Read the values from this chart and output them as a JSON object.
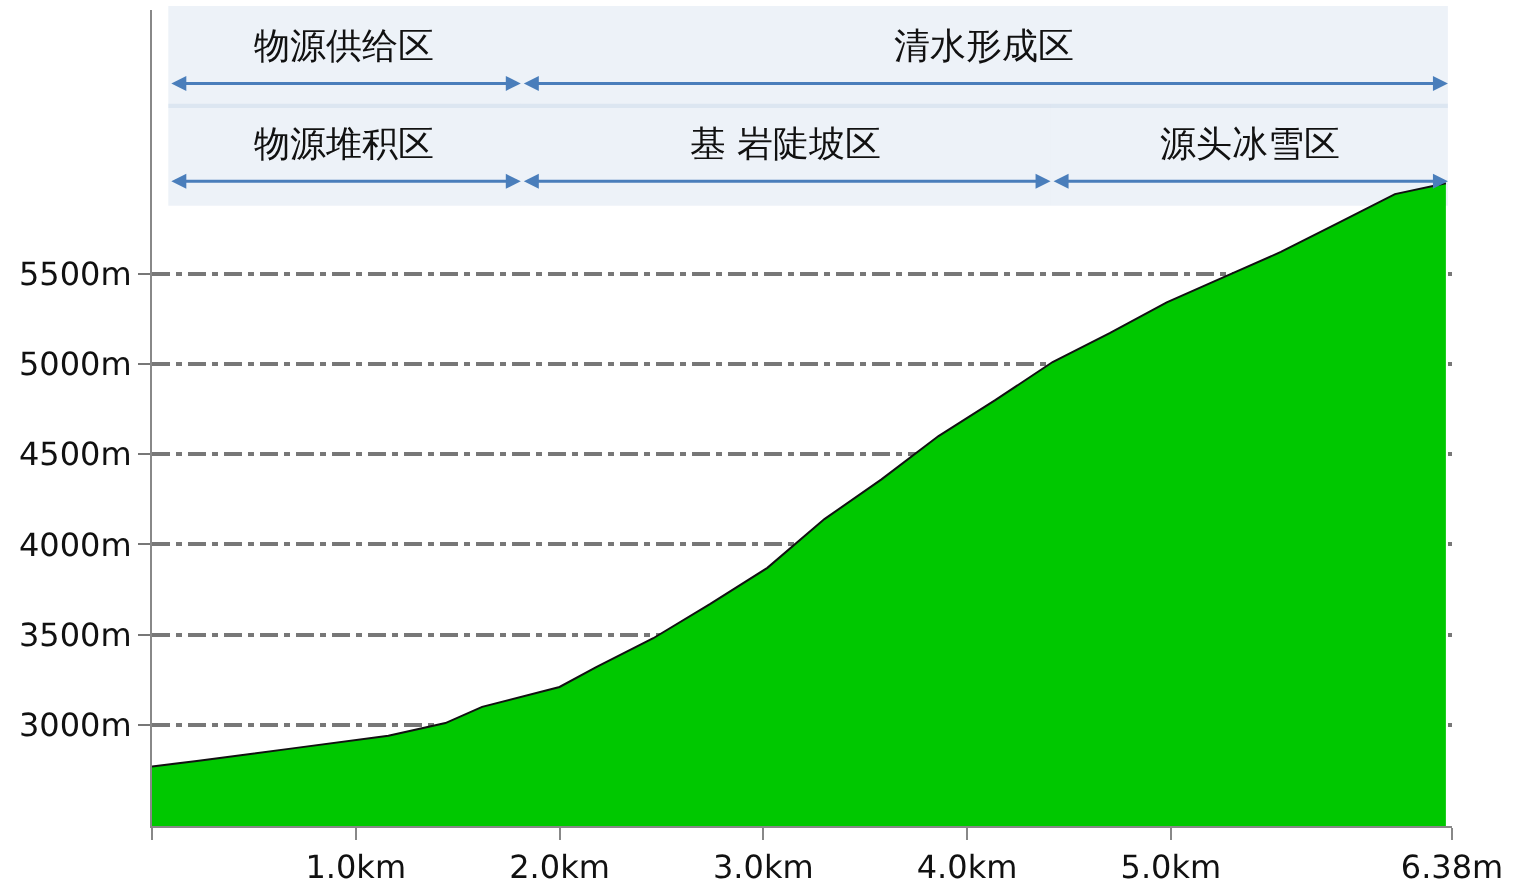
{
  "chart_data": {
    "type": "area",
    "x": [
      0,
      0.22,
      0.69,
      1.16,
      1.44,
      1.62,
      2.0,
      2.18,
      2.46,
      2.74,
      3.02,
      3.3,
      3.58,
      3.86,
      4.14,
      4.42,
      4.7,
      4.98,
      5.26,
      5.54,
      5.82,
      6.1,
      6.35
    ],
    "series": [
      {
        "color": "#00c800",
        "values": [
          2770,
          2800,
          2870,
          2940,
          3010,
          3100,
          3210,
          3320,
          3480,
          3670,
          3870,
          4140,
          4360,
          4600,
          4800,
          5010,
          5170,
          5340,
          5480,
          5620,
          5780,
          5940,
          6000
        ]
      }
    ],
    "xlim": [
      0,
      6.38
    ],
    "ylim": [
      2440,
      6960
    ],
    "xticks": [
      {
        "value": 0,
        "label": null
      },
      {
        "value": 1,
        "label": "1.0km"
      },
      {
        "value": 2,
        "label": "2.0km"
      },
      {
        "value": 3,
        "label": "3.0km"
      },
      {
        "value": 4,
        "label": "4.0km"
      },
      {
        "value": 5,
        "label": "5.0km"
      },
      {
        "value": 6.38,
        "label": "6.38m"
      }
    ],
    "yticks": [
      {
        "value": 3000,
        "label": "3000m"
      },
      {
        "value": 3500,
        "label": "3500m"
      },
      {
        "value": 4000,
        "label": "4000m"
      },
      {
        "value": 4500,
        "label": "4500m"
      },
      {
        "value": 5000,
        "label": "5000m"
      },
      {
        "value": 5500,
        "label": "5500m"
      }
    ],
    "grid": "y",
    "bands": [
      {
        "axis": "x",
        "from": 0.08,
        "to": 1.81,
        "label": "物源供给区",
        "color": "#4a7ebb"
      },
      {
        "axis": "x",
        "from": 1.81,
        "to": 6.36,
        "label": "清水形成区",
        "color": "#4a7ebb"
      },
      {
        "axis": "x",
        "from": 0.08,
        "to": 1.81,
        "label": "物源堆积区",
        "color": "#4a7ebb"
      },
      {
        "axis": "x",
        "from": 1.81,
        "to": 4.41,
        "label": "基 岩陡坡区",
        "color": "#4a7ebb"
      },
      {
        "axis": "x",
        "from": 4.41,
        "to": 6.36,
        "label": "源头冰雪区",
        "color": "#4a7ebb"
      }
    ]
  }
}
